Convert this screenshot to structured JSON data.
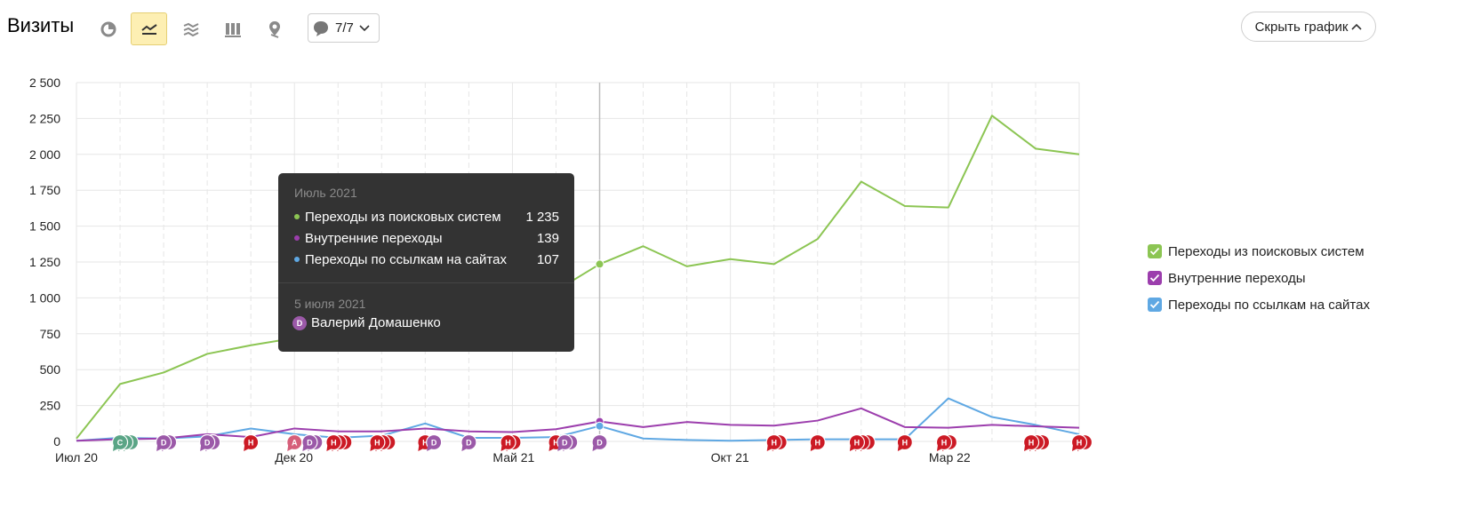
{
  "toolbar": {
    "title": "Визиты",
    "view_buttons": [
      {
        "icon": "pie-chart-icon",
        "active": false
      },
      {
        "icon": "line-chart-icon",
        "active": true
      },
      {
        "icon": "area-chart-icon",
        "active": false
      },
      {
        "icon": "bar-chart-icon",
        "active": false
      },
      {
        "icon": "map-pin-icon",
        "active": false
      }
    ],
    "comments_count": "7/7",
    "hide_chart_label": "Скрыть график"
  },
  "tooltip": {
    "period": "Июль 2021",
    "rows": [
      {
        "label": "Переходы из поисковых систем",
        "value": "1 235",
        "color": "#8cc553"
      },
      {
        "label": "Внутренние переходы",
        "value": "139",
        "color": "#9c3ead"
      },
      {
        "label": "Переходы по ссылкам на сайтах",
        "value": "107",
        "color": "#5fa8e3"
      }
    ],
    "note_date": "5 июля 2021",
    "note_badge": "D",
    "note_author": "Валерий Домашенко"
  },
  "legend": [
    {
      "label": "Переходы из поисковых систем",
      "color": "#8cc553",
      "checked": true
    },
    {
      "label": "Внутренние переходы",
      "color": "#9c3ead",
      "checked": true
    },
    {
      "label": "Переходы по ссылкам на сайтах",
      "color": "#5fa8e3",
      "checked": true
    }
  ],
  "chart_data": {
    "type": "line",
    "ylim": [
      0,
      2500
    ],
    "yticks": [
      0,
      250,
      500,
      750,
      1000,
      1250,
      1500,
      1750,
      2000,
      2250,
      2500
    ],
    "ytick_labels": [
      "0",
      "250",
      "500",
      "750",
      "1 000",
      "1 250",
      "1 500",
      "1 750",
      "2 000",
      "2 250",
      "2 500"
    ],
    "x": [
      "2020-07",
      "2020-08",
      "2020-09",
      "2020-10",
      "2020-11",
      "2020-12",
      "2021-01",
      "2021-02",
      "2021-03",
      "2021-04",
      "2021-05",
      "2021-06",
      "2021-07",
      "2021-08",
      "2021-09",
      "2021-10",
      "2021-11",
      "2021-12",
      "2022-01",
      "2022-02",
      "2022-03",
      "2022-04",
      "2022-05",
      "2022-06"
    ],
    "xtick_labels": [
      {
        "index": 0,
        "label": "Июл 20"
      },
      {
        "index": 5,
        "label": "Дек 20"
      },
      {
        "index": 10,
        "label": "Май 21"
      },
      {
        "index": 15,
        "label": "Окт 21"
      },
      {
        "index": 20,
        "label": "Мар 22"
      }
    ],
    "highlight_index": 12,
    "series": [
      {
        "name": "Переходы из поисковых систем",
        "color": "#8cc553",
        "values": [
          20,
          400,
          480,
          610,
          670,
          720,
          760,
          800,
          850,
          900,
          960,
          1050,
          1235,
          1360,
          1220,
          1270,
          1235,
          1410,
          1810,
          1640,
          1630,
          2270,
          2040,
          2000
        ]
      },
      {
        "name": "Внутренние переходы",
        "color": "#9c3ead",
        "values": [
          5,
          15,
          20,
          50,
          30,
          90,
          70,
          70,
          90,
          70,
          65,
          85,
          139,
          100,
          135,
          115,
          110,
          145,
          230,
          100,
          95,
          115,
          105,
          95
        ]
      },
      {
        "name": "Переходы по ссылкам на сайтах",
        "color": "#5fa8e3",
        "values": [
          5,
          25,
          20,
          35,
          90,
          50,
          25,
          40,
          125,
          25,
          25,
          30,
          107,
          20,
          10,
          5,
          10,
          15,
          15,
          15,
          300,
          170,
          115,
          50
        ]
      }
    ],
    "annotations": [
      {
        "index": 1,
        "letters": [
          "C",
          "C",
          "C"
        ],
        "color": "#5aa586"
      },
      {
        "index": 2,
        "letters": [
          "D",
          "D"
        ],
        "color": "#9b59a8"
      },
      {
        "index": 3,
        "letters": [
          "D",
          "D"
        ],
        "color": "#9b59a8"
      },
      {
        "index": 4,
        "letters": [
          "H"
        ],
        "color": "#cc1a25"
      },
      {
        "index": 5,
        "letters": [
          "A"
        ],
        "color": "#d65f7a"
      },
      {
        "index": 5.35,
        "letters": [
          "D",
          "D"
        ],
        "color": "#9b59a8"
      },
      {
        "index": 5.9,
        "letters": [
          "H",
          "H",
          "H"
        ],
        "color": "#cc1a25"
      },
      {
        "index": 6.9,
        "letters": [
          "H",
          "H",
          "H"
        ],
        "color": "#cc1a25"
      },
      {
        "index": 8,
        "letters": [
          "H"
        ],
        "color": "#cc1a25"
      },
      {
        "index": 8.2,
        "letters": [
          "D"
        ],
        "color": "#9b59a8"
      },
      {
        "index": 9,
        "letters": [
          "D"
        ],
        "color": "#9b59a8"
      },
      {
        "index": 9.9,
        "letters": [
          "H",
          "H"
        ],
        "color": "#cc1a25"
      },
      {
        "index": 11,
        "letters": [
          "H"
        ],
        "color": "#cc1a25"
      },
      {
        "index": 11.2,
        "letters": [
          "D",
          "D"
        ],
        "color": "#9b59a8"
      },
      {
        "index": 12,
        "letters": [
          "D"
        ],
        "color": "#9b59a8"
      },
      {
        "index": 16,
        "letters": [
          "H",
          "H"
        ],
        "color": "#cc1a25"
      },
      {
        "index": 17,
        "letters": [
          "H"
        ],
        "color": "#cc1a25"
      },
      {
        "index": 17.9,
        "letters": [
          "H",
          "H",
          "H"
        ],
        "color": "#cc1a25"
      },
      {
        "index": 19,
        "letters": [
          "H"
        ],
        "color": "#cc1a25"
      },
      {
        "index": 19.9,
        "letters": [
          "H",
          "H"
        ],
        "color": "#cc1a25"
      },
      {
        "index": 21.9,
        "letters": [
          "H",
          "H",
          "H"
        ],
        "color": "#cc1a25"
      },
      {
        "index": 23,
        "letters": [
          "H",
          "H"
        ],
        "color": "#cc1a25"
      }
    ]
  }
}
